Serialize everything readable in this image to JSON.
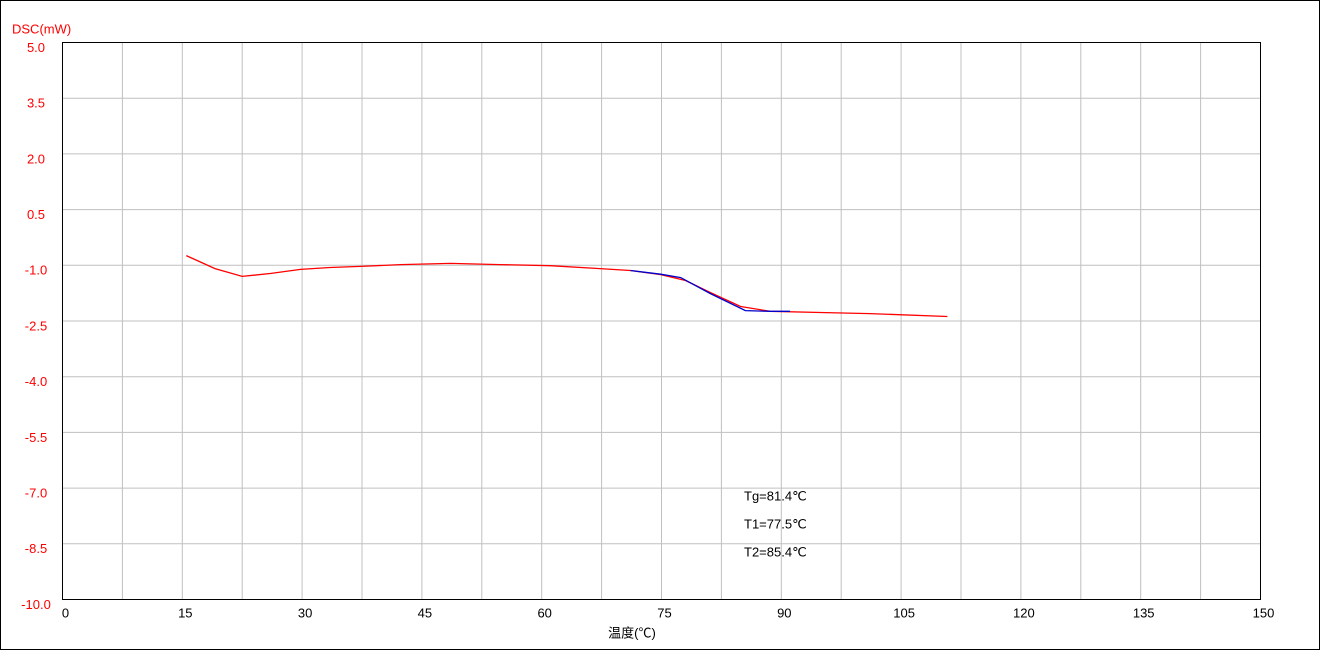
{
  "chart_data": {
    "type": "line",
    "y_label": "DSC(mW)",
    "x_label": "温度(℃)",
    "xlim": [
      0,
      150
    ],
    "xticks": [
      0,
      15,
      30,
      45,
      60,
      75,
      90,
      105,
      120,
      135,
      150
    ],
    "xminor": [
      7.5,
      22.5,
      37.5,
      52.5,
      67.5,
      82.5,
      97.5,
      112.5,
      127.5,
      142.5
    ],
    "ylim": [
      -10,
      5
    ],
    "yticks": [
      {
        "value": 5,
        "label": "5.0"
      },
      3.5,
      {
        "value": 2,
        "label": "2.0"
      },
      0.5,
      {
        "value": -1,
        "label": "-1.0"
      },
      -2.5,
      {
        "value": -4,
        "label": "-4.0"
      },
      -5.5,
      {
        "value": -7,
        "label": "-7.0"
      },
      -8.5,
      {
        "value": -10,
        "label": "-10.0"
      }
    ],
    "grid": true,
    "tick_color": "#ff0000",
    "series": [
      {
        "color": "#ff0000",
        "x": [
          15.5,
          19.1,
          22.5,
          26.0,
          29.8,
          33.5,
          37.3,
          42.3,
          48.6,
          54.8,
          61.1,
          67.3,
          71.1,
          74.9,
          78.0,
          81.1,
          84.9,
          88.6,
          94.9,
          101.1,
          110.8
        ],
        "values": [
          -0.74,
          -1.09,
          -1.3,
          -1.22,
          -1.11,
          -1.06,
          -1.03,
          -0.98,
          -0.95,
          -0.98,
          -1.01,
          -1.09,
          -1.14,
          -1.25,
          -1.41,
          -1.73,
          -2.11,
          -2.24,
          -2.27,
          -2.3,
          -2.38
        ]
      },
      {
        "color": "#0000cc",
        "x": [
          71.1,
          74.9,
          77.4,
          81.1,
          85.5,
          88.6,
          91.1
        ],
        "values": [
          -1.14,
          -1.24,
          -1.33,
          -1.76,
          -2.22,
          -2.24,
          -2.24
        ]
      }
    ],
    "annotations": [
      "Tg=81.4℃",
      "T1=77.5℃",
      "T2=85.4℃"
    ]
  }
}
